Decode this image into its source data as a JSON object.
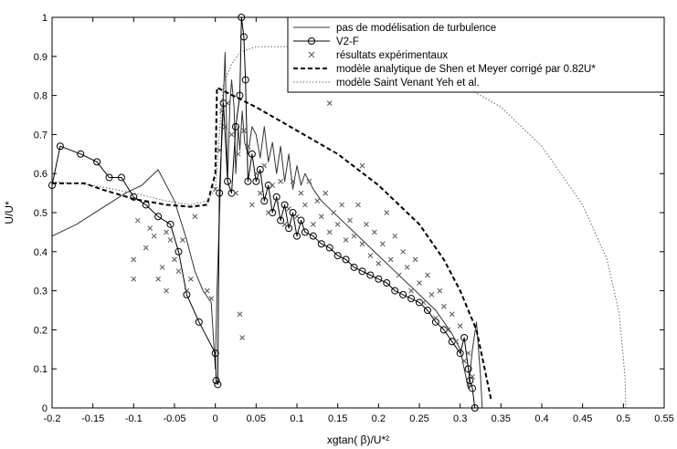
{
  "chart_data": {
    "type": "line",
    "title": "",
    "xlabel": "xgtan( β)/U*²",
    "ylabel": "U/U*",
    "xlim": [
      -0.2,
      0.55
    ],
    "ylim": [
      0,
      1
    ],
    "x_ticks": [
      "-0.2",
      "-0.15",
      "-0.1",
      "-0.05",
      "0",
      "0.05",
      "0.1",
      "0.15",
      "0.2",
      "0.25",
      "0.3",
      "0.35",
      "0.4",
      "0.45",
      "0.5",
      "0.55"
    ],
    "y_ticks": [
      "0",
      "0.1",
      "0.2",
      "0.3",
      "0.4",
      "0.5",
      "0.6",
      "0.7",
      "0.8",
      "0.9",
      "1"
    ],
    "grid": false,
    "legend_position": "top-right",
    "legend": [
      "pas de modélisation de turbulence",
      "V2-F",
      "résultats expérimentaux",
      "modèle analytique de Shen et Meyer corrigé par 0.82U*",
      "modèle Saint Venant Yeh et al."
    ],
    "series": [
      {
        "name": "pas de modélisation de turbulence",
        "style": "solid-thin",
        "color": "#333333",
        "points": [
          [
            -0.2,
            0.44
          ],
          [
            -0.17,
            0.47
          ],
          [
            -0.14,
            0.51
          ],
          [
            -0.11,
            0.55
          ],
          [
            -0.09,
            0.57
          ],
          [
            -0.07,
            0.61
          ],
          [
            -0.05,
            0.53
          ],
          [
            -0.035,
            0.43
          ],
          [
            -0.025,
            0.35
          ],
          [
            -0.015,
            0.3
          ],
          [
            -0.005,
            0.27
          ],
          [
            0,
            0.1
          ],
          [
            0.002,
            0.3
          ],
          [
            0.006,
            0.55
          ],
          [
            0.008,
            0.72
          ],
          [
            0.01,
            0.8
          ],
          [
            0.012,
            0.91
          ],
          [
            0.015,
            0.58
          ],
          [
            0.018,
            0.78
          ],
          [
            0.02,
            0.84
          ],
          [
            0.023,
            0.77
          ],
          [
            0.025,
            0.6
          ],
          [
            0.028,
            0.72
          ],
          [
            0.03,
            0.66
          ],
          [
            0.033,
            0.76
          ],
          [
            0.036,
            0.68
          ],
          [
            0.04,
            0.65
          ],
          [
            0.045,
            0.72
          ],
          [
            0.05,
            0.7
          ],
          [
            0.055,
            0.64
          ],
          [
            0.06,
            0.72
          ],
          [
            0.065,
            0.63
          ],
          [
            0.07,
            0.68
          ],
          [
            0.075,
            0.6
          ],
          [
            0.08,
            0.67
          ],
          [
            0.085,
            0.58
          ],
          [
            0.09,
            0.65
          ],
          [
            0.095,
            0.56
          ],
          [
            0.1,
            0.62
          ],
          [
            0.105,
            0.57
          ],
          [
            0.11,
            0.6
          ],
          [
            0.12,
            0.56
          ],
          [
            0.13,
            0.53
          ],
          [
            0.14,
            0.51
          ],
          [
            0.15,
            0.49
          ],
          [
            0.16,
            0.47
          ],
          [
            0.17,
            0.45
          ],
          [
            0.18,
            0.43
          ],
          [
            0.19,
            0.41
          ],
          [
            0.2,
            0.39
          ],
          [
            0.21,
            0.37
          ],
          [
            0.22,
            0.35
          ],
          [
            0.23,
            0.33
          ],
          [
            0.24,
            0.31
          ],
          [
            0.25,
            0.29
          ],
          [
            0.26,
            0.27
          ],
          [
            0.27,
            0.25
          ],
          [
            0.28,
            0.22
          ],
          [
            0.29,
            0.19
          ],
          [
            0.3,
            0.15
          ],
          [
            0.305,
            0.1
          ],
          [
            0.31,
            0.05
          ],
          [
            0.315,
            0.15
          ],
          [
            0.32,
            0.22
          ],
          [
            0.325,
            0.08
          ],
          [
            0.327,
            0
          ]
        ]
      },
      {
        "name": "V2-F",
        "style": "solid-circles",
        "color": "#000000",
        "points": [
          [
            -0.2,
            0.57
          ],
          [
            -0.19,
            0.67
          ],
          [
            -0.165,
            0.65
          ],
          [
            -0.145,
            0.63
          ],
          [
            -0.13,
            0.59
          ],
          [
            -0.115,
            0.59
          ],
          [
            -0.1,
            0.54
          ],
          [
            -0.085,
            0.52
          ],
          [
            -0.07,
            0.49
          ],
          [
            -0.055,
            0.47
          ],
          [
            -0.045,
            0.4
          ],
          [
            -0.035,
            0.29
          ],
          [
            -0.02,
            0.22
          ],
          [
            0,
            0.14
          ],
          [
            0.001,
            0.07
          ],
          [
            0.003,
            0.06
          ],
          [
            0.005,
            0.55
          ],
          [
            0.01,
            0.78
          ],
          [
            0.015,
            0.58
          ],
          [
            0.02,
            0.55
          ],
          [
            0.025,
            0.72
          ],
          [
            0.03,
            0.8
          ],
          [
            0.032,
            1.0
          ],
          [
            0.035,
            0.95
          ],
          [
            0.037,
            0.84
          ],
          [
            0.04,
            0.58
          ],
          [
            0.045,
            0.65
          ],
          [
            0.05,
            0.58
          ],
          [
            0.055,
            0.61
          ],
          [
            0.06,
            0.53
          ],
          [
            0.065,
            0.57
          ],
          [
            0.07,
            0.5
          ],
          [
            0.075,
            0.54
          ],
          [
            0.08,
            0.48
          ],
          [
            0.085,
            0.52
          ],
          [
            0.09,
            0.46
          ],
          [
            0.095,
            0.5
          ],
          [
            0.1,
            0.44
          ],
          [
            0.105,
            0.48
          ],
          [
            0.11,
            0.45
          ],
          [
            0.12,
            0.44
          ],
          [
            0.13,
            0.42
          ],
          [
            0.14,
            0.41
          ],
          [
            0.15,
            0.39
          ],
          [
            0.16,
            0.38
          ],
          [
            0.17,
            0.36
          ],
          [
            0.18,
            0.35
          ],
          [
            0.19,
            0.34
          ],
          [
            0.2,
            0.33
          ],
          [
            0.21,
            0.32
          ],
          [
            0.22,
            0.3
          ],
          [
            0.23,
            0.29
          ],
          [
            0.24,
            0.28
          ],
          [
            0.25,
            0.27
          ],
          [
            0.26,
            0.25
          ],
          [
            0.27,
            0.22
          ],
          [
            0.28,
            0.2
          ],
          [
            0.29,
            0.17
          ],
          [
            0.3,
            0.14
          ],
          [
            0.305,
            0.18
          ],
          [
            0.31,
            0.1
          ],
          [
            0.312,
            0.07
          ],
          [
            0.315,
            0.05
          ],
          [
            0.318,
            0
          ]
        ]
      },
      {
        "name": "modèle analytique de Shen et Meyer corrigé par 0.82U*",
        "style": "dashed-thick",
        "color": "#000000",
        "points": [
          [
            -0.2,
            0.575
          ],
          [
            -0.16,
            0.575
          ],
          [
            -0.14,
            0.56
          ],
          [
            -0.1,
            0.535
          ],
          [
            -0.06,
            0.52
          ],
          [
            -0.03,
            0.515
          ],
          [
            -0.01,
            0.52
          ],
          [
            0,
            0.6
          ],
          [
            0.002,
            0.82
          ],
          [
            0.05,
            0.77
          ],
          [
            0.1,
            0.71
          ],
          [
            0.15,
            0.65
          ],
          [
            0.2,
            0.57
          ],
          [
            0.25,
            0.47
          ],
          [
            0.28,
            0.38
          ],
          [
            0.3,
            0.3
          ],
          [
            0.32,
            0.2
          ],
          [
            0.33,
            0.1
          ],
          [
            0.338,
            0.02
          ]
        ]
      },
      {
        "name": "modèle Saint Venant Yeh et al.",
        "style": "dotted-thin",
        "color": "#666666",
        "points": [
          [
            -0.2,
            0.58
          ],
          [
            -0.15,
            0.57
          ],
          [
            -0.1,
            0.55
          ],
          [
            -0.06,
            0.53
          ],
          [
            -0.03,
            0.52
          ],
          [
            -0.01,
            0.53
          ],
          [
            0,
            0.56
          ],
          [
            0.005,
            0.7
          ],
          [
            0.01,
            0.83
          ],
          [
            0.02,
            0.88
          ],
          [
            0.03,
            0.91
          ],
          [
            0.05,
            0.925
          ],
          [
            0.1,
            0.925
          ],
          [
            0.15,
            0.915
          ],
          [
            0.2,
            0.9
          ],
          [
            0.25,
            0.87
          ],
          [
            0.3,
            0.83
          ],
          [
            0.35,
            0.77
          ],
          [
            0.4,
            0.67
          ],
          [
            0.45,
            0.52
          ],
          [
            0.48,
            0.38
          ],
          [
            0.495,
            0.24
          ],
          [
            0.502,
            0.08
          ],
          [
            0.503,
            0
          ]
        ]
      },
      {
        "name": "résultats expérimentaux",
        "style": "markers-x",
        "color": "#555555",
        "points": [
          [
            -0.1,
            0.33
          ],
          [
            -0.1,
            0.38
          ],
          [
            -0.095,
            0.48
          ],
          [
            -0.085,
            0.41
          ],
          [
            -0.08,
            0.46
          ],
          [
            -0.075,
            0.44
          ],
          [
            -0.07,
            0.33
          ],
          [
            -0.065,
            0.36
          ],
          [
            -0.06,
            0.3
          ],
          [
            -0.06,
            0.45
          ],
          [
            -0.055,
            0.43
          ],
          [
            -0.05,
            0.38
          ],
          [
            -0.045,
            0.35
          ],
          [
            -0.04,
            0.43
          ],
          [
            -0.035,
            0.3
          ],
          [
            -0.03,
            0.33
          ],
          [
            -0.025,
            0.49
          ],
          [
            -0.01,
            0.3
          ],
          [
            -0.005,
            0.28
          ],
          [
            0,
            0.56
          ],
          [
            0.005,
            0.66
          ],
          [
            0.008,
            0.76
          ],
          [
            0.012,
            0.72
          ],
          [
            0.015,
            0.78
          ],
          [
            0.02,
            0.7
          ],
          [
            0.025,
            0.55
          ],
          [
            0.028,
            0.65
          ],
          [
            0.03,
            0.24
          ],
          [
            0.033,
            0.18
          ],
          [
            0.035,
            0.71
          ],
          [
            0.04,
            0.67
          ],
          [
            0.045,
            0.52
          ],
          [
            0.05,
            0.6
          ],
          [
            0.055,
            0.55
          ],
          [
            0.06,
            0.62
          ],
          [
            0.065,
            0.5
          ],
          [
            0.07,
            0.57
          ],
          [
            0.075,
            0.53
          ],
          [
            0.08,
            0.58
          ],
          [
            0.085,
            0.47
          ],
          [
            0.09,
            0.51
          ],
          [
            0.095,
            0.58
          ],
          [
            0.1,
            0.49
          ],
          [
            0.105,
            0.55
          ],
          [
            0.11,
            0.52
          ],
          [
            0.115,
            0.58
          ],
          [
            0.12,
            0.47
          ],
          [
            0.125,
            0.53
          ],
          [
            0.13,
            0.49
          ],
          [
            0.135,
            0.55
          ],
          [
            0.14,
            0.45
          ],
          [
            0.145,
            0.5
          ],
          [
            0.15,
            0.47
          ],
          [
            0.155,
            0.52
          ],
          [
            0.16,
            0.43
          ],
          [
            0.165,
            0.48
          ],
          [
            0.17,
            0.44
          ],
          [
            0.175,
            0.52
          ],
          [
            0.18,
            0.42
          ],
          [
            0.185,
            0.47
          ],
          [
            0.19,
            0.39
          ],
          [
            0.195,
            0.45
          ],
          [
            0.2,
            0.37
          ],
          [
            0.205,
            0.42
          ],
          [
            0.21,
            0.5
          ],
          [
            0.215,
            0.38
          ],
          [
            0.22,
            0.44
          ],
          [
            0.225,
            0.34
          ],
          [
            0.23,
            0.4
          ],
          [
            0.235,
            0.36
          ],
          [
            0.24,
            0.3
          ],
          [
            0.245,
            0.38
          ],
          [
            0.25,
            0.32
          ],
          [
            0.255,
            0.27
          ],
          [
            0.26,
            0.34
          ],
          [
            0.265,
            0.29
          ],
          [
            0.27,
            0.23
          ],
          [
            0.275,
            0.3
          ],
          [
            0.28,
            0.26
          ],
          [
            0.285,
            0.2
          ],
          [
            0.29,
            0.24
          ],
          [
            0.295,
            0.17
          ],
          [
            0.3,
            0.21
          ],
          [
            0.305,
            0.12
          ],
          [
            0.31,
            0.14
          ],
          [
            0.315,
            0.08
          ],
          [
            0.14,
            0.78
          ],
          [
            0.18,
            0.62
          ]
        ]
      }
    ]
  }
}
